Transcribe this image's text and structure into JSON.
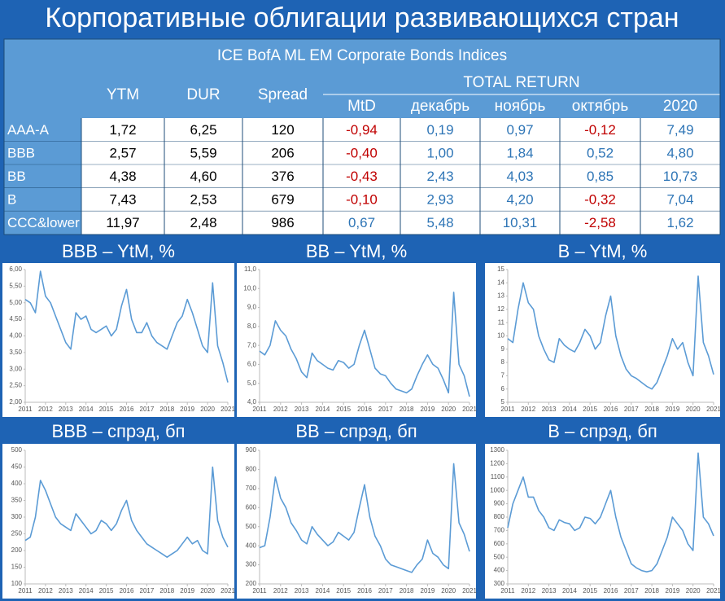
{
  "header": {
    "title": "Корпоративные облигации развивающихся стран"
  },
  "table": {
    "title": "ICE BofA ML EM Corporate Bonds Indices",
    "columns": [
      "YTM",
      "DUR",
      "Spread"
    ],
    "group": "TOTAL RETURN",
    "subcolumns": [
      "MtD",
      "декабрь",
      "ноябрь",
      "октябрь",
      "2020"
    ],
    "rows": [
      [
        "AAA-A",
        "1,72",
        "6,25",
        "120",
        "-0,94",
        "0,19",
        "0,97",
        "-0,12",
        "7,49"
      ],
      [
        "BBB",
        "2,57",
        "5,59",
        "206",
        "-0,40",
        "1,00",
        "1,84",
        "0,52",
        "4,80"
      ],
      [
        "BB",
        "4,38",
        "4,60",
        "376",
        "-0,43",
        "2,43",
        "4,03",
        "0,85",
        "10,73"
      ],
      [
        "B",
        "7,43",
        "2,53",
        "679",
        "-0,10",
        "2,93",
        "4,20",
        "-0,32",
        "7,04"
      ],
      [
        "CCC&lower",
        "11,97",
        "2,48",
        "986",
        "0,67",
        "5,48",
        "10,31",
        "-2,58",
        "1,62"
      ]
    ],
    "negative_color": "#c00000",
    "positive_color": "#2e75b6",
    "plain_color": "#000000"
  },
  "chart_data": [
    {
      "type": "line",
      "title": "BBB – YtM, %",
      "color": "#5b9bd5",
      "x": [
        2011,
        2011.25,
        2011.5,
        2011.75,
        2012,
        2012.25,
        2012.5,
        2012.75,
        2013,
        2013.25,
        2013.5,
        2013.75,
        2014,
        2014.25,
        2014.5,
        2014.75,
        2015,
        2015.25,
        2015.5,
        2015.75,
        2016,
        2016.25,
        2016.5,
        2016.75,
        2017,
        2017.25,
        2017.5,
        2017.75,
        2018,
        2018.25,
        2018.5,
        2018.75,
        2019,
        2019.25,
        2019.5,
        2019.75,
        2020,
        2020.25,
        2020.5,
        2020.75,
        2021
      ],
      "values": [
        5.1,
        5.0,
        4.7,
        5.95,
        5.2,
        5.0,
        4.6,
        4.2,
        3.8,
        3.6,
        4.7,
        4.5,
        4.6,
        4.2,
        4.1,
        4.2,
        4.3,
        4.0,
        4.2,
        4.9,
        5.4,
        4.5,
        4.1,
        4.1,
        4.4,
        4.0,
        3.8,
        3.7,
        3.6,
        4.0,
        4.4,
        4.6,
        5.1,
        4.7,
        4.2,
        3.7,
        3.5,
        5.6,
        3.7,
        3.2,
        2.6
      ],
      "xlim": [
        2011,
        2021
      ],
      "xticks": [
        2011,
        2012,
        2013,
        2014,
        2015,
        2016,
        2017,
        2018,
        2019,
        2020,
        2021
      ],
      "ylim": [
        2,
        6
      ],
      "yticks": [
        {
          "value": 2,
          "label": "2,00"
        },
        {
          "value": 2.5,
          "label": "2,50"
        },
        {
          "value": 3,
          "label": "3,00"
        },
        {
          "value": 3.5,
          "label": "3,50"
        },
        {
          "value": 4,
          "label": "4,00"
        },
        {
          "value": 4.5,
          "label": "4,50"
        },
        {
          "value": 5,
          "label": "5,00"
        },
        {
          "value": 5.5,
          "label": "5,50"
        },
        {
          "value": 6,
          "label": "6,00"
        }
      ]
    },
    {
      "type": "line",
      "title": "BB – YtM, %",
      "color": "#5b9bd5",
      "x": [
        2011,
        2011.25,
        2011.5,
        2011.75,
        2012,
        2012.25,
        2012.5,
        2012.75,
        2013,
        2013.25,
        2013.5,
        2013.75,
        2014,
        2014.25,
        2014.5,
        2014.75,
        2015,
        2015.25,
        2015.5,
        2015.75,
        2016,
        2016.25,
        2016.5,
        2016.75,
        2017,
        2017.25,
        2017.5,
        2017.75,
        2018,
        2018.25,
        2018.5,
        2018.75,
        2019,
        2019.25,
        2019.5,
        2019.75,
        2020,
        2020.25,
        2020.5,
        2020.75,
        2021
      ],
      "values": [
        6.7,
        6.5,
        7.0,
        8.3,
        7.8,
        7.5,
        6.8,
        6.3,
        5.6,
        5.3,
        6.6,
        6.2,
        6.0,
        5.8,
        5.7,
        6.2,
        6.1,
        5.8,
        6.0,
        7.0,
        7.8,
        6.8,
        5.8,
        5.5,
        5.4,
        5.0,
        4.7,
        4.6,
        4.5,
        4.7,
        5.4,
        6.0,
        6.5,
        6.0,
        5.8,
        5.2,
        4.5,
        9.8,
        6.0,
        5.4,
        4.3
      ],
      "xlim": [
        2011,
        2021
      ],
      "xticks": [
        2011,
        2012,
        2013,
        2014,
        2015,
        2016,
        2017,
        2018,
        2019,
        2020,
        2021
      ],
      "ylim": [
        4,
        11
      ],
      "yticks": [
        {
          "value": 4,
          "label": "4,0"
        },
        {
          "value": 5,
          "label": "5,0"
        },
        {
          "value": 6,
          "label": "6,0"
        },
        {
          "value": 7,
          "label": "7,0"
        },
        {
          "value": 8,
          "label": "8,0"
        },
        {
          "value": 9,
          "label": "9,0"
        },
        {
          "value": 10,
          "label": "10,0"
        },
        {
          "value": 11,
          "label": "11,0"
        }
      ]
    },
    {
      "type": "line",
      "title": "B – YtM, %",
      "color": "#5b9bd5",
      "x": [
        2011,
        2011.25,
        2011.5,
        2011.75,
        2012,
        2012.25,
        2012.5,
        2012.75,
        2013,
        2013.25,
        2013.5,
        2013.75,
        2014,
        2014.25,
        2014.5,
        2014.75,
        2015,
        2015.25,
        2015.5,
        2015.75,
        2016,
        2016.25,
        2016.5,
        2016.75,
        2017,
        2017.25,
        2017.5,
        2017.75,
        2018,
        2018.25,
        2018.5,
        2018.75,
        2019,
        2019.25,
        2019.5,
        2019.75,
        2020,
        2020.25,
        2020.5,
        2020.75,
        2021
      ],
      "values": [
        9.8,
        9.5,
        12,
        14,
        12.5,
        12,
        10,
        9,
        8.2,
        8.0,
        9.8,
        9.3,
        9.0,
        8.8,
        9.5,
        10.5,
        10.0,
        9.0,
        9.5,
        11.5,
        13.0,
        10,
        8.5,
        7.5,
        7.0,
        6.8,
        6.5,
        6.2,
        6.0,
        6.5,
        7.5,
        8.5,
        9.8,
        9.0,
        9.5,
        8.0,
        7.0,
        14.5,
        9.5,
        8.5,
        7.1
      ],
      "xlim": [
        2011,
        2021
      ],
      "xticks": [
        2011,
        2012,
        2013,
        2014,
        2015,
        2016,
        2017,
        2018,
        2019,
        2020,
        2021
      ],
      "ylim": [
        5,
        15
      ],
      "yticks": [
        5,
        6,
        7,
        8,
        9,
        10,
        11,
        12,
        13,
        14,
        15
      ]
    },
    {
      "type": "line",
      "title": "BBB – спрэд, бп",
      "color": "#5b9bd5",
      "x": [
        2011,
        2011.25,
        2011.5,
        2011.75,
        2012,
        2012.25,
        2012.5,
        2012.75,
        2013,
        2013.25,
        2013.5,
        2013.75,
        2014,
        2014.25,
        2014.5,
        2014.75,
        2015,
        2015.25,
        2015.5,
        2015.75,
        2016,
        2016.25,
        2016.5,
        2016.75,
        2017,
        2017.25,
        2017.5,
        2017.75,
        2018,
        2018.25,
        2018.5,
        2018.75,
        2019,
        2019.25,
        2019.5,
        2019.75,
        2020,
        2020.25,
        2020.5,
        2020.75,
        2021
      ],
      "values": [
        230,
        240,
        300,
        410,
        380,
        340,
        300,
        280,
        270,
        260,
        310,
        290,
        270,
        250,
        260,
        290,
        280,
        260,
        280,
        320,
        350,
        290,
        260,
        240,
        220,
        210,
        200,
        190,
        180,
        190,
        200,
        220,
        240,
        220,
        230,
        200,
        190,
        450,
        290,
        240,
        210
      ],
      "xlim": [
        2011,
        2021
      ],
      "xticks": [
        2011,
        2012,
        2013,
        2014,
        2015,
        2016,
        2017,
        2018,
        2019,
        2020,
        2021
      ],
      "ylim": [
        100,
        500
      ],
      "yticks": [
        100,
        150,
        200,
        250,
        300,
        350,
        400,
        450,
        500
      ]
    },
    {
      "type": "line",
      "title": "BB – спрэд, бп",
      "color": "#5b9bd5",
      "x": [
        2011,
        2011.25,
        2011.5,
        2011.75,
        2012,
        2012.25,
        2012.5,
        2012.75,
        2013,
        2013.25,
        2013.5,
        2013.75,
        2014,
        2014.25,
        2014.5,
        2014.75,
        2015,
        2015.25,
        2015.5,
        2015.75,
        2016,
        2016.25,
        2016.5,
        2016.75,
        2017,
        2017.25,
        2017.5,
        2017.75,
        2018,
        2018.25,
        2018.5,
        2018.75,
        2019,
        2019.25,
        2019.5,
        2019.75,
        2020,
        2020.25,
        2020.5,
        2020.75,
        2021
      ],
      "values": [
        390,
        400,
        550,
        760,
        650,
        600,
        520,
        480,
        430,
        410,
        500,
        460,
        430,
        400,
        420,
        470,
        450,
        430,
        470,
        600,
        720,
        550,
        450,
        400,
        330,
        300,
        290,
        280,
        270,
        260,
        300,
        330,
        430,
        360,
        340,
        300,
        280,
        830,
        520,
        460,
        370
      ],
      "xlim": [
        2011,
        2021
      ],
      "xticks": [
        2011,
        2012,
        2013,
        2014,
        2015,
        2016,
        2017,
        2018,
        2019,
        2020,
        2021
      ],
      "ylim": [
        200,
        900
      ],
      "yticks": [
        200,
        300,
        400,
        500,
        600,
        700,
        800,
        900
      ]
    },
    {
      "type": "line",
      "title": "B – спрэд, бп",
      "color": "#5b9bd5",
      "x": [
        2011,
        2011.25,
        2011.5,
        2011.75,
        2012,
        2012.25,
        2012.5,
        2012.75,
        2013,
        2013.25,
        2013.5,
        2013.75,
        2014,
        2014.25,
        2014.5,
        2014.75,
        2015,
        2015.25,
        2015.5,
        2015.75,
        2016,
        2016.25,
        2016.5,
        2016.75,
        2017,
        2017.25,
        2017.5,
        2017.75,
        2018,
        2018.25,
        2018.5,
        2018.75,
        2019,
        2019.25,
        2019.5,
        2019.75,
        2020,
        2020.25,
        2020.5,
        2020.75,
        2021
      ],
      "values": [
        720,
        900,
        1000,
        1100,
        950,
        950,
        850,
        800,
        720,
        700,
        780,
        760,
        750,
        700,
        720,
        800,
        790,
        750,
        800,
        900,
        1000,
        800,
        650,
        550,
        450,
        420,
        400,
        390,
        400,
        450,
        550,
        650,
        800,
        750,
        700,
        600,
        550,
        1280,
        800,
        750,
        660
      ],
      "xlim": [
        2011,
        2021
      ],
      "xticks": [
        2011,
        2012,
        2013,
        2014,
        2015,
        2016,
        2017,
        2018,
        2019,
        2020,
        2021
      ],
      "ylim": [
        300,
        1300
      ],
      "yticks": [
        300,
        400,
        500,
        600,
        700,
        800,
        900,
        1000,
        1100,
        1200,
        1300
      ]
    }
  ]
}
